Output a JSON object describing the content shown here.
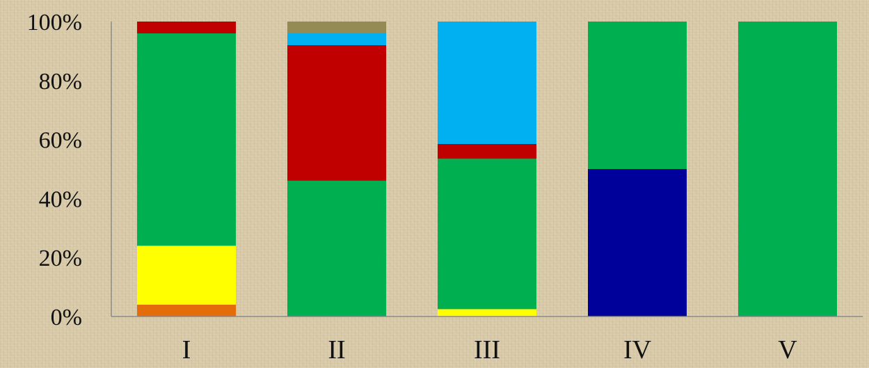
{
  "chart_data": {
    "type": "bar",
    "stacked": true,
    "percent": true,
    "categories": [
      "I",
      "II",
      "III",
      "IV",
      "V"
    ],
    "y_ticks": [
      "0%",
      "20%",
      "40%",
      "60%",
      "80%",
      "100%"
    ],
    "ylim": [
      0,
      100
    ],
    "grid": false,
    "legend": "none",
    "series": [
      {
        "color": "#e46c0a",
        "values": [
          4,
          0,
          0,
          0,
          0
        ]
      },
      {
        "color": "#ffff00",
        "values": [
          20,
          0,
          2.5,
          0,
          0
        ]
      },
      {
        "color": "#00009a",
        "values": [
          0,
          0,
          0,
          50,
          0
        ]
      },
      {
        "color": "#00b050",
        "values": [
          72,
          46,
          51,
          50,
          100
        ]
      },
      {
        "color": "#c00000",
        "values": [
          4,
          46,
          5,
          0,
          0
        ]
      },
      {
        "color": "#00b0f0",
        "values": [
          0,
          4,
          41.5,
          0,
          0
        ]
      },
      {
        "color": "#948a54",
        "values": [
          0,
          4,
          0,
          0,
          0
        ]
      }
    ]
  }
}
